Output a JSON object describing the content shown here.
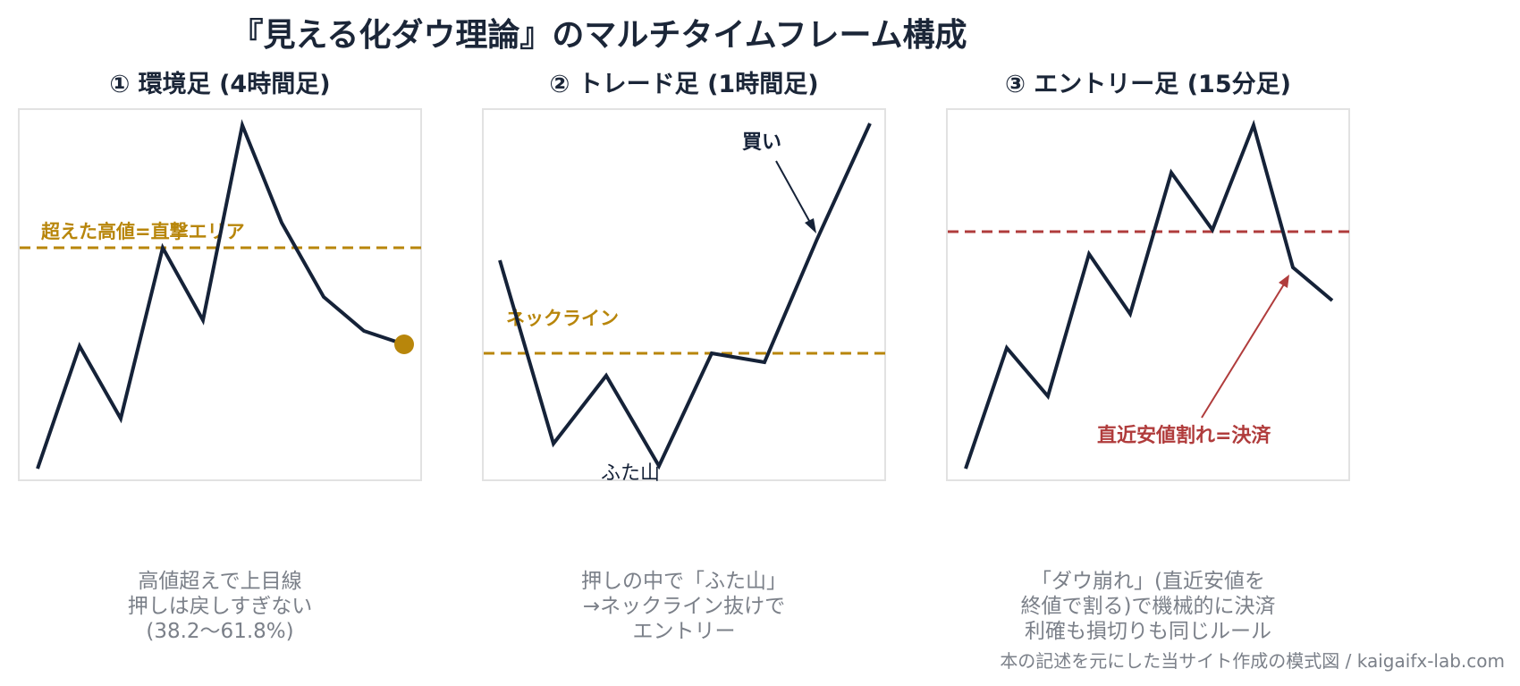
{
  "title": "『見える化ダウ理論』のマルチタイムフレーム構成",
  "panels": [
    {
      "heading": "① 環境足 (4時間足)",
      "annotation": "超えた高値=直撃エリア",
      "caption": [
        "高値超えで上目線",
        "押しは戻しすぎない",
        "(38.2〜61.8%)"
      ],
      "accent_color": "#b8860b"
    },
    {
      "heading": "② トレード足 (1時間足)",
      "annotation": "ネックライン",
      "buy_label": "買い",
      "bottom_label": "ふた山",
      "caption": [
        "押しの中で「ふた山」",
        "→ネックライン抜けで",
        "エントリー"
      ],
      "accent_color": "#b8860b"
    },
    {
      "heading": "③ エントリー足 (15分足)",
      "annotation": "直近安値割れ=決済",
      "caption": [
        "「ダウ崩れ」(直近安値を",
        "終値で割る)で機械的に決済",
        "利確も損切りも同じルール"
      ],
      "accent_color": "#b03c3c"
    }
  ],
  "footer": "本の記述を元にした当サイト作成の模式図 / kaigaifx-lab.com",
  "colors": {
    "line": "#152238",
    "gold": "#b8860b",
    "red": "#b03c3c",
    "caption": "#7b8089"
  }
}
